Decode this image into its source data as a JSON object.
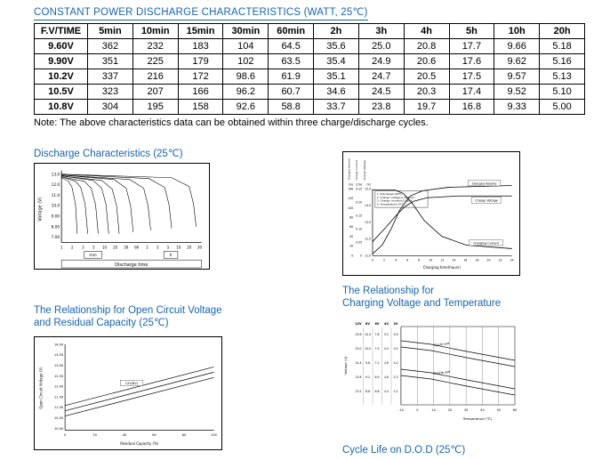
{
  "page": {
    "title": "CONSTANT POWER DISCHARGE CHARACTERISTICS (WATT, 25℃)",
    "note": "Note: The above characteristics data can be obtained within three charge/discharge cycles.",
    "colors": {
      "accent": "#1766ad",
      "text": "#000000",
      "table_border": "#000000"
    }
  },
  "table": {
    "header": [
      "F.V/TIME",
      "5min",
      "10min",
      "15min",
      "30min",
      "60min",
      "2h",
      "3h",
      "4h",
      "5h",
      "10h",
      "20h"
    ],
    "rows": [
      [
        "9.60V",
        "362",
        "232",
        "183",
        "104",
        "64.5",
        "35.6",
        "25.0",
        "20.8",
        "17.7",
        "9.66",
        "5.18"
      ],
      [
        "9.90V",
        "351",
        "225",
        "179",
        "102",
        "63.5",
        "35.4",
        "24.9",
        "20.6",
        "17.6",
        "9.62",
        "5.16"
      ],
      [
        "10.2V",
        "337",
        "216",
        "172",
        "98.6",
        "61.9",
        "35.1",
        "24.7",
        "20.5",
        "17.5",
        "9.57",
        "5.13"
      ],
      [
        "10.5V",
        "323",
        "207",
        "166",
        "96.2",
        "60.7",
        "34.6",
        "24.5",
        "20.3",
        "17.4",
        "9.52",
        "5.10"
      ],
      [
        "10.8V",
        "304",
        "195",
        "158",
        "92.6",
        "58.8",
        "33.7",
        "23.8",
        "19.7",
        "16.8",
        "9.33",
        "5.00"
      ]
    ]
  },
  "charts": {
    "discharge": {
      "title": "Discharge Characteristics (25℃)",
      "ylabel": "Voltage (V)",
      "xlabel": "Discharge time",
      "yticks": [
        "13.0",
        "12.0",
        "11.0",
        "10.0",
        "9.00",
        "8.00",
        "7.00"
      ],
      "xticks_min": [
        "1",
        "2",
        "3",
        "5",
        "10",
        "20",
        "30",
        "60"
      ],
      "xticks_h": [
        "2",
        "3",
        "5",
        "10",
        "20",
        "30"
      ],
      "unit_min": "min",
      "unit_h": "h",
      "curves": [
        "30,16 38,20 42,27 46,46 48,80",
        "30,15 46,20 52,27 57,46 60,80",
        "30,15 56,20 64,28 69,47 72,80",
        "30,14 66,19 76,28 81,47 84,80",
        "30,14 76,19 88,29 93,48 96,80",
        "30,13 90,18 104,28 109,48 112,78",
        "30,13 108,18 124,28 129,48 132,76",
        "30,12 130,17 148,27 153,47 156,74",
        "30,12 156,16 176,26 181,46 184,72"
      ]
    },
    "charging": {
      "rot_labels": [
        "Charged Volume",
        "Charge Current",
        "Charge Voltage"
      ],
      "units": [
        "(%)",
        "(CA)",
        "(V)"
      ],
      "pct_ticks": [
        "140",
        "120",
        "100",
        "80",
        "60",
        "40",
        "20",
        "0"
      ],
      "ca_ticks": [
        "0.25",
        "0.20",
        "0.15",
        "0.10",
        "0.05",
        "0"
      ],
      "v_ticks": [
        "15.0",
        "14.0",
        "13.0",
        "12.0",
        "11.0"
      ],
      "xticks": [
        "0",
        "2",
        "4",
        "6",
        "8",
        "10",
        "12",
        "14",
        "16",
        "18",
        "20",
        "22",
        "24"
      ],
      "xlabel": "Charging time(hours)",
      "legend": [
        "1. Discharge:100%",
        "2. Charge voltage:2.40V/cell",
        "3. Charge constant:0.25CA",
        "4. Temperature:25℃"
      ],
      "labels": {
        "volume": "Charged Volume",
        "voltage": "Charge Voltage",
        "current": "Charging Current"
      },
      "curve_volume": "33,116 44,106 54,88 64,66 76,50 90,44 120,40 192,38",
      "curve_voltage": "33,102 48,86 60,72 70,62 80,56 95,52 130,50 192,50",
      "curve_current": "33,43 58,43 68,47 78,58 92,78 112,96 140,106 192,110"
    },
    "ocv": {
      "title_line1": "The Relationship for Open Circuit Voltage",
      "title_line2": "and Residual Capacity (25℃)",
      "ylabel": "Open Circuit Voltage (V)",
      "xlabel": "Residual Capacity (%)",
      "yticks": [
        "14.00",
        "13.50",
        "13.00",
        "12.50",
        "12.00",
        "11.50",
        "11.00",
        "10.50",
        "10.00"
      ],
      "xticks": [
        "0",
        "20",
        "40",
        "60",
        "80",
        "100"
      ],
      "series_label": "12V(6V)",
      "lines": [
        "34,78 204,34",
        "34,84 204,40",
        "34,90 204,46"
      ]
    },
    "temp": {
      "title_line1": "The Relationship for",
      "title_line2": "Charging Voltage and Temperature",
      "ylabel": "Voltage (V)",
      "xlabel": "Temperature (℃)",
      "col_headers": [
        "12V",
        "8V",
        "6V",
        "4V",
        "2V"
      ],
      "tick_rows": [
        [
          "15.6",
          "10.4",
          "7.8",
          "5.2",
          "2.6"
        ],
        [
          "15.0",
          "10.0",
          "7.5",
          "5.0",
          "2.5"
        ],
        [
          "14.4",
          "9.6",
          "7.2",
          "4.8",
          "2.4"
        ],
        [
          "13.8",
          "9.2",
          "6.9",
          "4.6",
          "2.3"
        ],
        [
          "13.2",
          "8.8",
          "6.6",
          "4.4",
          "2.2"
        ]
      ],
      "xticks": [
        "-10",
        "0",
        "10",
        "20",
        "30",
        "40",
        "50",
        "60"
      ],
      "label_cycle": "Cycle use",
      "label_trickle": "Trickle use",
      "cycle_lines": [
        "66,28 100,32 140,40 194,50",
        "66,35 100,39 140,47 194,57"
      ],
      "trickle_lines": [
        "66,60 100,64 140,72 194,82",
        "66,67 100,71 140,79 194,89"
      ]
    },
    "cycle_life_caption": "Cycle Life on D.O.D (25℃)"
  },
  "chart_data": [
    {
      "type": "line",
      "title": "Discharge Characteristics (25℃)",
      "xlabel": "Discharge time",
      "ylabel": "Voltage (V)",
      "ylim": [
        7.0,
        13.0
      ],
      "x_scale": "log",
      "x_ticks": [
        "1min",
        "2min",
        "3min",
        "5min",
        "10min",
        "20min",
        "30min",
        "60min",
        "2h",
        "3h",
        "5h",
        "10h",
        "20h",
        "30h"
      ],
      "series_note": "Family of nine discharge curves, each starting near 13.0 V, staying flat, then dropping to cutoff voltage at progressively longer discharge times"
    },
    {
      "type": "line",
      "title": "",
      "xlabel": "Charging time(hours)",
      "x_range": [
        0,
        24
      ],
      "y_axes": [
        {
          "name": "Charged Volume",
          "unit": "(%)",
          "ticks": [
            0,
            20,
            40,
            60,
            80,
            100,
            120,
            140
          ]
        },
        {
          "name": "Charge Current",
          "unit": "(CA)",
          "ticks": [
            0,
            0.05,
            0.1,
            0.15,
            0.2,
            0.25
          ]
        },
        {
          "name": "Charge Voltage",
          "unit": "(V)",
          "ticks": [
            11.0,
            12.0,
            13.0,
            14.0,
            15.0
          ]
        }
      ],
      "legend": [
        "1. Discharge:100%",
        "2. Charge voltage:2.40V/cell",
        "3. Charge constant:0.25CA",
        "4. Temperature:25℃"
      ],
      "series": [
        "Charged Volume (rising S-curve, plateaus near 120%)",
        "Charge Voltage (rises then levels off)",
        "Charging Current (constant 0.25CA then decays toward 0)"
      ]
    },
    {
      "type": "line",
      "title": "The Relationship for Open Circuit Voltage and Residual Capacity (25℃)",
      "xlabel": "Residual Capacity (%)",
      "ylabel": "Open Circuit Voltage (V)",
      "xlim": [
        0,
        100
      ],
      "ylim": [
        10.0,
        14.0
      ],
      "series": [
        "12V(6V) open-circuit voltage band: three parallel lines rising from about 11.8V at 0% to about 13.1V at 100%"
      ]
    },
    {
      "type": "line",
      "title": "The Relationship for Charging Voltage and Temperature",
      "xlabel": "Temperature (℃)",
      "ylabel": "Voltage (V)",
      "xlim": [
        -10,
        60
      ],
      "voltage_scales": {
        "12V": [
          15.6,
          15.0,
          14.4,
          13.8,
          13.2
        ],
        "8V": [
          10.4,
          10.0,
          9.6,
          9.2,
          8.8
        ],
        "6V": [
          7.8,
          7.5,
          7.2,
          6.9,
          6.6
        ],
        "4V": [
          5.2,
          5.0,
          4.8,
          4.6,
          4.4
        ],
        "2V": [
          2.6,
          2.5,
          2.4,
          2.3,
          2.2
        ]
      },
      "series": [
        "Cycle use (upper band, charging voltage decreases as temperature rises)",
        "Trickle use (lower band, charging voltage decreases as temperature rises)"
      ]
    }
  ]
}
